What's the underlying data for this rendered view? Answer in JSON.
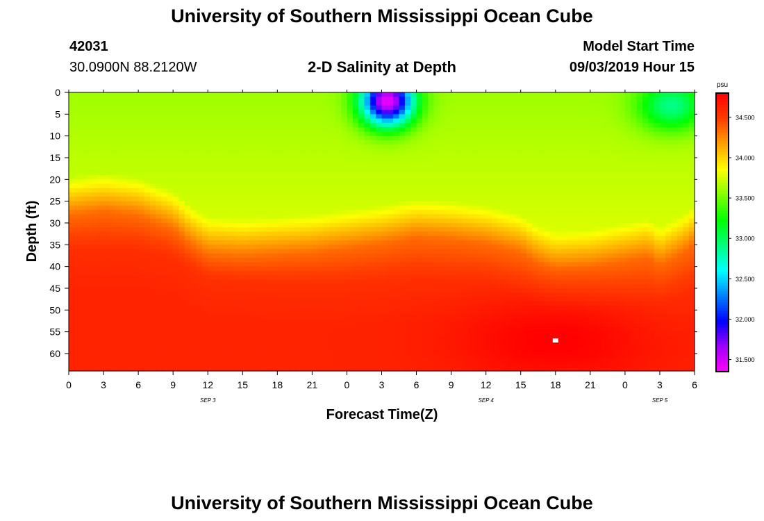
{
  "header": {
    "title": "University of Southern Mississippi Ocean Cube",
    "station_id": "42031",
    "location": "30.0900N 88.2120W",
    "plot_title": "2-D Salinity at Depth",
    "model_start_label": "Model Start Time",
    "model_start_value": "09/03/2019 Hour 15"
  },
  "footer": {
    "title": "University of Southern Mississippi Ocean Cube"
  },
  "chart_data": {
    "type": "heatmap",
    "title": "2-D Salinity at Depth",
    "xlabel": "Forecast Time(Z)",
    "ylabel": "Depth (ft)",
    "x_range_hours": [
      0,
      54
    ],
    "y_range_ft": [
      0,
      64
    ],
    "x_ticks": [
      "0",
      "3",
      "6",
      "9",
      "12",
      "15",
      "18",
      "21",
      "0",
      "3",
      "6",
      "9",
      "12",
      "15",
      "18",
      "21",
      "0",
      "3",
      "6"
    ],
    "y_ticks": [
      "0",
      "5",
      "10",
      "15",
      "20",
      "25",
      "30",
      "35",
      "40",
      "45",
      "50",
      "55",
      "60"
    ],
    "y_tick_values": [
      0,
      5,
      10,
      15,
      20,
      25,
      30,
      35,
      40,
      45,
      50,
      55,
      60
    ],
    "date_labels": [
      {
        "text": "SEP 3",
        "hour": 12
      },
      {
        "text": "SEP 4",
        "hour": 36
      },
      {
        "text": "SEP 5",
        "hour": 51
      }
    ],
    "colorbar": {
      "unit": "psu",
      "min": 31.35,
      "max": 34.8,
      "tick_values": [
        31.5,
        32.0,
        32.5,
        33.0,
        33.5,
        34.0,
        34.5
      ],
      "tick_labels": [
        "31.500",
        "32.000",
        "32.500",
        "33.000",
        "33.500",
        "34.000",
        "34.500"
      ],
      "colors": [
        "#ff00ff",
        "#a000ff",
        "#0000ff",
        "#0080ff",
        "#00ffff",
        "#00ff80",
        "#00ff00",
        "#80ff00",
        "#ffff00",
        "#ffa000",
        "#ff4000",
        "#ff0000"
      ]
    },
    "interface_depth_ft": [
      [
        0,
        24.5
      ],
      [
        3,
        23.5
      ],
      [
        6,
        24.5
      ],
      [
        9,
        27.5
      ],
      [
        10.5,
        31
      ],
      [
        12,
        33.5
      ],
      [
        15,
        34
      ],
      [
        18,
        33.5
      ],
      [
        21,
        33
      ],
      [
        24,
        32
      ],
      [
        27,
        31
      ],
      [
        30,
        29.5
      ],
      [
        33,
        30
      ],
      [
        36,
        31
      ],
      [
        39,
        33
      ],
      [
        40.5,
        35.5
      ],
      [
        42,
        37
      ],
      [
        45,
        36.5
      ],
      [
        48,
        35
      ],
      [
        50,
        34
      ],
      [
        51,
        36
      ],
      [
        53,
        33
      ],
      [
        54,
        31
      ]
    ],
    "deep_zone_depth_ft": [
      [
        0,
        36
      ],
      [
        6,
        36
      ],
      [
        9,
        38
      ],
      [
        12,
        43
      ],
      [
        18,
        44
      ],
      [
        24,
        44
      ],
      [
        30,
        43
      ],
      [
        36,
        44
      ],
      [
        40,
        48
      ],
      [
        42,
        51
      ],
      [
        45,
        51
      ],
      [
        48,
        50
      ],
      [
        51,
        49
      ],
      [
        54,
        45
      ]
    ],
    "features": [
      {
        "name": "surface fresh patch",
        "hour": 27.5,
        "depth_ft": 2,
        "salinity": 31.4
      },
      {
        "name": "surface low-salinity patch",
        "hour": 52,
        "depth_ft": 3,
        "salinity": 32.9
      },
      {
        "name": "deep max near bottom",
        "hour": 42,
        "depth_ft": 57,
        "salinity": 34.8
      }
    ]
  }
}
